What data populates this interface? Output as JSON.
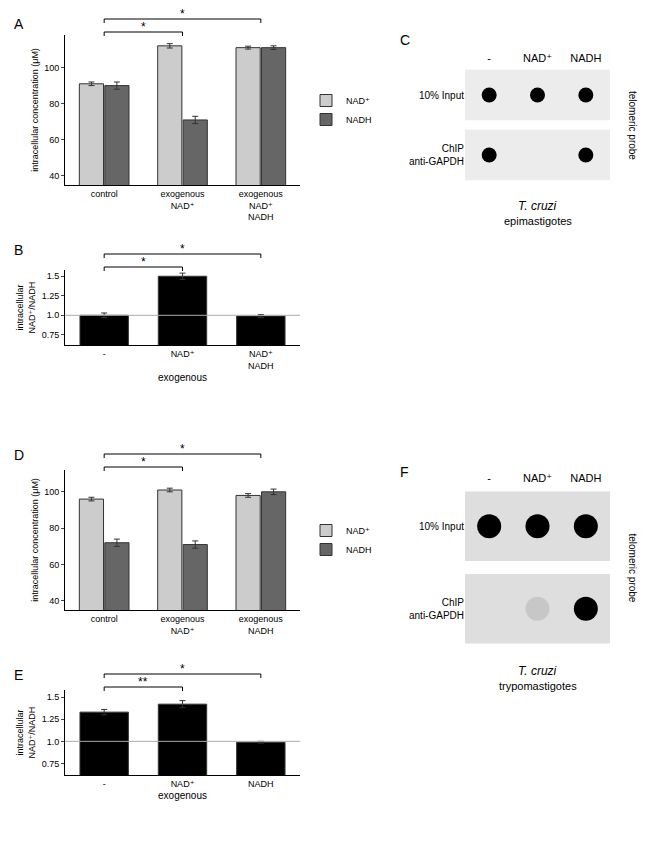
{
  "chart_data": [
    {
      "panel": "A",
      "type": "bar",
      "categories": [
        "control",
        "exogenous NAD⁺",
        "exogenous NAD⁺ NADH"
      ],
      "y_label": "intracellular concentration (μM)",
      "ylim": [
        35,
        118
      ],
      "yticks": [
        40,
        60,
        80,
        100
      ],
      "legend": "right",
      "series": [
        {
          "name": "NAD⁺",
          "color": "#cccccc",
          "values": [
            91,
            112,
            111
          ],
          "errors": [
            1,
            1.2,
            0.8
          ]
        },
        {
          "name": "NADH",
          "color": "#666666",
          "values": [
            90,
            71,
            111
          ],
          "errors": [
            2,
            2,
            1
          ]
        }
      ],
      "significance": [
        {
          "from": "control",
          "to": "exogenous NAD⁺",
          "text": "*"
        },
        {
          "from": "control",
          "to": "exogenous NAD⁺ NADH",
          "text": "*"
        }
      ]
    },
    {
      "panel": "B",
      "type": "bar",
      "categories": [
        "-",
        "NAD⁺",
        "NAD⁺ NADH"
      ],
      "x_label": "exogenous",
      "y_label": "intracellular NAD⁺/NADH",
      "ylim": [
        0.62,
        1.58
      ],
      "yticks": [
        0.75,
        {
          "value": 1,
          "label": "1.0"
        },
        1.25,
        1.5
      ],
      "reference_line": 1,
      "series": [
        {
          "color": "#000000",
          "values": [
            1.0,
            1.5,
            0.99
          ],
          "errors": [
            0.03,
            0.04,
            0.02
          ]
        }
      ],
      "significance": [
        {
          "from": "-",
          "to": "NAD⁺",
          "text": "*"
        },
        {
          "from": "-",
          "to": "NAD⁺ NADH",
          "text": "*"
        }
      ]
    },
    {
      "panel": "D",
      "type": "bar",
      "categories": [
        "control",
        "exogenous NAD⁺",
        "exogenous NADH"
      ],
      "y_label": "intracellular concentration (μM)",
      "ylim": [
        35,
        112
      ],
      "yticks": [
        40,
        60,
        80,
        100
      ],
      "legend": "right",
      "series": [
        {
          "name": "NAD⁺",
          "color": "#cccccc",
          "values": [
            96,
            101,
            98
          ],
          "errors": [
            1,
            1,
            1
          ]
        },
        {
          "name": "NADH",
          "color": "#666666",
          "values": [
            72,
            71,
            100
          ],
          "errors": [
            2,
            2,
            1.5
          ]
        }
      ],
      "significance": [
        {
          "from": "control",
          "to": "exogenous NAD⁺",
          "text": "*"
        },
        {
          "from": "control",
          "to": "exogenous NADH",
          "text": "*"
        }
      ]
    },
    {
      "panel": "E",
      "type": "bar",
      "categories": [
        "-",
        "NAD⁺",
        "NADH"
      ],
      "x_label": "exogenous",
      "y_label": "intracellular NAD⁺/NADH",
      "ylim": [
        0.62,
        1.58
      ],
      "yticks": [
        0.75,
        {
          "value": 1,
          "label": "1.0"
        },
        1.25,
        1.5
      ],
      "reference_line": 1,
      "series": [
        {
          "color": "#000000",
          "values": [
            1.33,
            1.42,
            0.99
          ],
          "errors": [
            0.03,
            0.04,
            0.01
          ]
        }
      ],
      "significance": [
        {
          "from": "-",
          "to": "NAD⁺",
          "text": "**"
        },
        {
          "from": "-",
          "to": "NADH",
          "text": "*"
        }
      ]
    }
  ],
  "blots": [
    {
      "panel": "C",
      "type": "dot_blot",
      "columns": [
        "-",
        "NAD⁺",
        "NADH"
      ],
      "rows": [
        "10% Input",
        "ChIP anti-GAPDH"
      ],
      "signal": [
        [
          1,
          1,
          1
        ],
        [
          1,
          0,
          1
        ]
      ],
      "probe": "telomeric probe",
      "organism": "T. cruzi",
      "stage": "epimastigotes"
    },
    {
      "panel": "F",
      "type": "dot_blot",
      "columns": [
        "-",
        "NAD⁺",
        "NADH"
      ],
      "rows": [
        "10% Input",
        "ChIP anti-GAPDH"
      ],
      "signal": [
        [
          1,
          1,
          1
        ],
        [
          0,
          0.1,
          1
        ]
      ],
      "probe": "telomeric probe",
      "organism": "T. cruzi",
      "stage": "trypomastigotes"
    }
  ]
}
